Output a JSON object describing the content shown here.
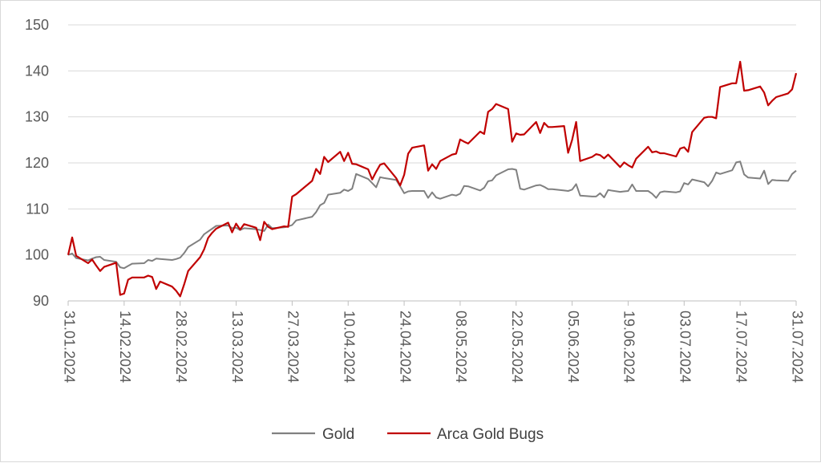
{
  "chart_data": {
    "type": "line",
    "title": "",
    "xlabel": "",
    "ylabel": "",
    "ylim": [
      90,
      150
    ],
    "yticks": [
      90,
      100,
      110,
      120,
      130,
      140,
      150
    ],
    "xlim": [
      "2024-01-31",
      "2024-07-31"
    ],
    "xticks": [
      "31.01.2024",
      "14.02.2024",
      "28.02.2024",
      "13.03.2024",
      "27.03.2024",
      "10.04.2024",
      "24.04.2024",
      "08.05.2024",
      "22.05.2024",
      "05.06.2024",
      "19.06.2024",
      "03.07.2024",
      "17.07.2024",
      "31.07.2024"
    ],
    "grid": "horizontal",
    "legend_position": "bottom",
    "series": [
      {
        "name": "Gold",
        "color": "#808080",
        "points": [
          [
            "2024-01-31",
            100
          ],
          [
            "2024-02-01",
            100.3
          ],
          [
            "2024-02-02",
            99.3
          ],
          [
            "2024-02-05",
            98.8
          ],
          [
            "2024-02-06",
            99.2
          ],
          [
            "2024-02-07",
            99.5
          ],
          [
            "2024-02-08",
            99.6
          ],
          [
            "2024-02-09",
            98.9
          ],
          [
            "2024-02-12",
            98.5
          ],
          [
            "2024-02-13",
            97.3
          ],
          [
            "2024-02-14",
            97.1
          ],
          [
            "2024-02-15",
            97.6
          ],
          [
            "2024-02-16",
            98.1
          ],
          [
            "2024-02-19",
            98.2
          ],
          [
            "2024-02-20",
            98.9
          ],
          [
            "2024-02-21",
            98.7
          ],
          [
            "2024-02-22",
            99.2
          ],
          [
            "2024-02-23",
            99.1
          ],
          [
            "2024-02-26",
            98.9
          ],
          [
            "2024-02-27",
            99.1
          ],
          [
            "2024-02-28",
            99.4
          ],
          [
            "2024-02-29",
            100.4
          ],
          [
            "2024-03-01",
            101.7
          ],
          [
            "2024-03-04",
            103.3
          ],
          [
            "2024-03-05",
            104.5
          ],
          [
            "2024-03-06",
            105.1
          ],
          [
            "2024-03-07",
            105.7
          ],
          [
            "2024-03-08",
            106.3
          ],
          [
            "2024-03-11",
            106.4
          ],
          [
            "2024-03-12",
            105.8
          ],
          [
            "2024-03-13",
            105.9
          ],
          [
            "2024-03-14",
            105.4
          ],
          [
            "2024-03-15",
            105.8
          ],
          [
            "2024-03-18",
            105.6
          ],
          [
            "2024-03-19",
            105.4
          ],
          [
            "2024-03-20",
            105.2
          ],
          [
            "2024-03-21",
            106.6
          ],
          [
            "2024-03-22",
            105.8
          ],
          [
            "2024-03-25",
            106
          ],
          [
            "2024-03-26",
            106.2
          ],
          [
            "2024-03-27",
            106.5
          ],
          [
            "2024-03-28",
            107.5
          ],
          [
            "2024-04-01",
            108.3
          ],
          [
            "2024-04-02",
            109.3
          ],
          [
            "2024-04-03",
            110.8
          ],
          [
            "2024-04-04",
            111.3
          ],
          [
            "2024-04-05",
            113.1
          ],
          [
            "2024-04-08",
            113.5
          ],
          [
            "2024-04-09",
            114.2
          ],
          [
            "2024-04-10",
            113.9
          ],
          [
            "2024-04-11",
            114.4
          ],
          [
            "2024-04-12",
            117.6
          ],
          [
            "2024-04-15",
            116.5
          ],
          [
            "2024-04-16",
            115.6
          ],
          [
            "2024-04-17",
            114.7
          ],
          [
            "2024-04-18",
            116.9
          ],
          [
            "2024-04-19",
            116.7
          ],
          [
            "2024-04-22",
            116.3
          ],
          [
            "2024-04-23",
            114.9
          ],
          [
            "2024-04-24",
            113.4
          ],
          [
            "2024-04-25",
            113.8
          ],
          [
            "2024-04-26",
            113.9
          ],
          [
            "2024-04-29",
            113.9
          ],
          [
            "2024-04-30",
            112.4
          ],
          [
            "2024-05-01",
            113.6
          ],
          [
            "2024-05-02",
            112.5
          ],
          [
            "2024-05-03",
            112.2
          ],
          [
            "2024-05-06",
            113.1
          ],
          [
            "2024-05-07",
            112.9
          ],
          [
            "2024-05-08",
            113.3
          ],
          [
            "2024-05-09",
            115
          ],
          [
            "2024-05-10",
            114.9
          ],
          [
            "2024-05-13",
            114
          ],
          [
            "2024-05-14",
            114.6
          ],
          [
            "2024-05-15",
            116
          ],
          [
            "2024-05-16",
            116.2
          ],
          [
            "2024-05-17",
            117.3
          ],
          [
            "2024-05-20",
            118.6
          ],
          [
            "2024-05-21",
            118.7
          ],
          [
            "2024-05-22",
            118.5
          ],
          [
            "2024-05-23",
            114.4
          ],
          [
            "2024-05-24",
            114.2
          ],
          [
            "2024-05-27",
            115.1
          ],
          [
            "2024-05-28",
            115.2
          ],
          [
            "2024-05-29",
            114.8
          ],
          [
            "2024-05-30",
            114.3
          ],
          [
            "2024-05-31",
            114.3
          ],
          [
            "2024-06-03",
            114
          ],
          [
            "2024-06-04",
            113.9
          ],
          [
            "2024-06-05",
            114.2
          ],
          [
            "2024-06-06",
            115.4
          ],
          [
            "2024-06-07",
            112.9
          ],
          [
            "2024-06-10",
            112.7
          ],
          [
            "2024-06-11",
            112.7
          ],
          [
            "2024-06-12",
            113.4
          ],
          [
            "2024-06-13",
            112.5
          ],
          [
            "2024-06-14",
            114.1
          ],
          [
            "2024-06-17",
            113.7
          ],
          [
            "2024-06-18",
            113.8
          ],
          [
            "2024-06-19",
            113.9
          ],
          [
            "2024-06-20",
            115.3
          ],
          [
            "2024-06-21",
            113.9
          ],
          [
            "2024-06-24",
            113.9
          ],
          [
            "2024-06-25",
            113.3
          ],
          [
            "2024-06-26",
            112.4
          ],
          [
            "2024-06-27",
            113.6
          ],
          [
            "2024-06-28",
            113.8
          ],
          [
            "2024-07-01",
            113.6
          ],
          [
            "2024-07-02",
            113.8
          ],
          [
            "2024-07-03",
            115.6
          ],
          [
            "2024-07-04",
            115.3
          ],
          [
            "2024-07-05",
            116.4
          ],
          [
            "2024-07-08",
            115.8
          ],
          [
            "2024-07-09",
            114.9
          ],
          [
            "2024-07-10",
            116.1
          ],
          [
            "2024-07-11",
            117.9
          ],
          [
            "2024-07-12",
            117.6
          ],
          [
            "2024-07-15",
            118.4
          ],
          [
            "2024-07-16",
            120.1
          ],
          [
            "2024-07-17",
            120.3
          ],
          [
            "2024-07-18",
            117.5
          ],
          [
            "2024-07-19",
            116.8
          ],
          [
            "2024-07-22",
            116.6
          ],
          [
            "2024-07-23",
            118.3
          ],
          [
            "2024-07-24",
            115.4
          ],
          [
            "2024-07-25",
            116.3
          ],
          [
            "2024-07-26",
            116.2
          ],
          [
            "2024-07-29",
            116.1
          ],
          [
            "2024-07-30",
            117.6
          ],
          [
            "2024-07-31",
            118.3
          ]
        ]
      },
      {
        "name": "Arca Gold Bugs",
        "color": "#c00000",
        "points": [
          [
            "2024-01-31",
            100
          ],
          [
            "2024-02-01",
            103.8
          ],
          [
            "2024-02-02",
            99.8
          ],
          [
            "2024-02-05",
            98.2
          ],
          [
            "2024-02-06",
            99
          ],
          [
            "2024-02-07",
            97.7
          ],
          [
            "2024-02-08",
            96.5
          ],
          [
            "2024-02-09",
            97.4
          ],
          [
            "2024-02-12",
            98.3
          ],
          [
            "2024-02-13",
            91.3
          ],
          [
            "2024-02-14",
            91.6
          ],
          [
            "2024-02-15",
            94.6
          ],
          [
            "2024-02-16",
            95.1
          ],
          [
            "2024-02-19",
            95.1
          ],
          [
            "2024-02-20",
            95.5
          ],
          [
            "2024-02-21",
            95.2
          ],
          [
            "2024-02-22",
            92.6
          ],
          [
            "2024-02-23",
            94.2
          ],
          [
            "2024-02-26",
            93.1
          ],
          [
            "2024-02-27",
            92.2
          ],
          [
            "2024-02-28",
            91
          ],
          [
            "2024-02-29",
            93.6
          ],
          [
            "2024-03-01",
            96.5
          ],
          [
            "2024-03-04",
            99.5
          ],
          [
            "2024-03-05",
            101.2
          ],
          [
            "2024-03-06",
            103.7
          ],
          [
            "2024-03-07",
            104.8
          ],
          [
            "2024-03-08",
            105.7
          ],
          [
            "2024-03-11",
            107
          ],
          [
            "2024-03-12",
            104.9
          ],
          [
            "2024-03-13",
            106.8
          ],
          [
            "2024-03-14",
            105.5
          ],
          [
            "2024-03-15",
            106.7
          ],
          [
            "2024-03-18",
            105.9
          ],
          [
            "2024-03-19",
            103.2
          ],
          [
            "2024-03-20",
            107.2
          ],
          [
            "2024-03-21",
            106.1
          ],
          [
            "2024-03-22",
            105.6
          ],
          [
            "2024-03-25",
            106.2
          ],
          [
            "2024-03-26",
            106.1
          ],
          [
            "2024-03-27",
            112.7
          ],
          [
            "2024-03-28",
            113.2
          ],
          [
            "2024-04-01",
            116.1
          ],
          [
            "2024-04-02",
            118.7
          ],
          [
            "2024-04-03",
            117.6
          ],
          [
            "2024-04-04",
            121.3
          ],
          [
            "2024-04-05",
            120.2
          ],
          [
            "2024-04-08",
            122.4
          ],
          [
            "2024-04-09",
            120.4
          ],
          [
            "2024-04-10",
            122.2
          ],
          [
            "2024-04-11",
            119.8
          ],
          [
            "2024-04-12",
            119.7
          ],
          [
            "2024-04-15",
            118.6
          ],
          [
            "2024-04-16",
            116.4
          ],
          [
            "2024-04-17",
            118.1
          ],
          [
            "2024-04-18",
            119.6
          ],
          [
            "2024-04-19",
            119.9
          ],
          [
            "2024-04-22",
            116.7
          ],
          [
            "2024-04-23",
            115.1
          ],
          [
            "2024-04-24",
            117.4
          ],
          [
            "2024-04-25",
            122
          ],
          [
            "2024-04-26",
            123.3
          ],
          [
            "2024-04-29",
            123.8
          ],
          [
            "2024-04-30",
            118.3
          ],
          [
            "2024-05-01",
            119.7
          ],
          [
            "2024-05-02",
            118.7
          ],
          [
            "2024-05-03",
            120.4
          ],
          [
            "2024-05-06",
            121.8
          ],
          [
            "2024-05-07",
            122
          ],
          [
            "2024-05-08",
            125.1
          ],
          [
            "2024-05-09",
            124.6
          ],
          [
            "2024-05-10",
            124.2
          ],
          [
            "2024-05-13",
            126.8
          ],
          [
            "2024-05-14",
            126.3
          ],
          [
            "2024-05-15",
            131.1
          ],
          [
            "2024-05-16",
            131.7
          ],
          [
            "2024-05-17",
            132.8
          ],
          [
            "2024-05-20",
            131.7
          ],
          [
            "2024-05-21",
            124.6
          ],
          [
            "2024-05-22",
            126.4
          ],
          [
            "2024-05-23",
            126.1
          ],
          [
            "2024-05-24",
            126.2
          ],
          [
            "2024-05-27",
            128.9
          ],
          [
            "2024-05-28",
            126.5
          ],
          [
            "2024-05-29",
            128.7
          ],
          [
            "2024-05-30",
            127.8
          ],
          [
            "2024-05-31",
            127.8
          ],
          [
            "2024-06-03",
            128
          ],
          [
            "2024-06-04",
            122.2
          ],
          [
            "2024-06-05",
            125
          ],
          [
            "2024-06-06",
            128.9
          ],
          [
            "2024-06-07",
            120.4
          ],
          [
            "2024-06-10",
            121.3
          ],
          [
            "2024-06-11",
            121.9
          ],
          [
            "2024-06-12",
            121.7
          ],
          [
            "2024-06-13",
            121
          ],
          [
            "2024-06-14",
            121.8
          ],
          [
            "2024-06-17",
            119.1
          ],
          [
            "2024-06-18",
            120.1
          ],
          [
            "2024-06-19",
            119.5
          ],
          [
            "2024-06-20",
            119
          ],
          [
            "2024-06-21",
            120.9
          ],
          [
            "2024-06-24",
            123.5
          ],
          [
            "2024-06-25",
            122.3
          ],
          [
            "2024-06-26",
            122.5
          ],
          [
            "2024-06-27",
            122.1
          ],
          [
            "2024-06-28",
            122.1
          ],
          [
            "2024-07-01",
            121.4
          ],
          [
            "2024-07-02",
            123.1
          ],
          [
            "2024-07-03",
            123.4
          ],
          [
            "2024-07-04",
            122.4
          ],
          [
            "2024-07-05",
            126.7
          ],
          [
            "2024-07-08",
            129.8
          ],
          [
            "2024-07-09",
            130
          ],
          [
            "2024-07-10",
            130
          ],
          [
            "2024-07-11",
            129.7
          ],
          [
            "2024-07-12",
            136.5
          ],
          [
            "2024-07-15",
            137.3
          ],
          [
            "2024-07-16",
            137.3
          ],
          [
            "2024-07-17",
            142
          ],
          [
            "2024-07-18",
            135.7
          ],
          [
            "2024-07-19",
            135.8
          ],
          [
            "2024-07-22",
            136.6
          ],
          [
            "2024-07-23",
            135.3
          ],
          [
            "2024-07-24",
            132.5
          ],
          [
            "2024-07-25",
            133.5
          ],
          [
            "2024-07-26",
            134.3
          ],
          [
            "2024-07-29",
            135.1
          ],
          [
            "2024-07-30",
            136
          ],
          [
            "2024-07-31",
            139.5
          ]
        ]
      }
    ]
  }
}
